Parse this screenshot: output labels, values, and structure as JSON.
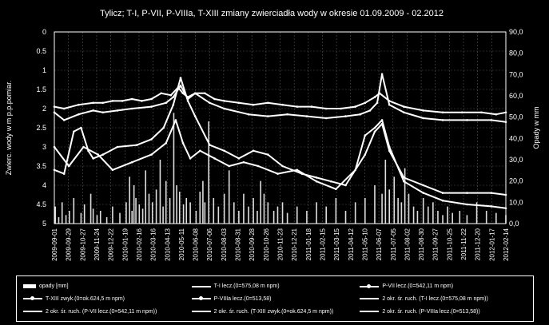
{
  "chart_data": {
    "type": "line",
    "title": "Tylicz; T-I, P-VII, P-VIIIa, T-XIII zmiany zwierciadła wody w okresie 01.09.2009 - 02.2012",
    "ylabel_left": "Zwierc. wody w m p.p.pomiar.",
    "ylabel_right": "Opady w mm",
    "y_left_lim": [
      0,
      5
    ],
    "y_left_ticks": [
      "0",
      "0.5",
      "1",
      "1.5",
      "2",
      "2.5",
      "3",
      "3.5",
      "4",
      "4.5",
      "5"
    ],
    "y_right_lim": [
      0,
      90
    ],
    "y_right_ticks": [
      "0,0",
      "10,0",
      "20,0",
      "30,0",
      "40,0",
      "50,0",
      "60,0",
      "70,0",
      "80,0",
      "90,0"
    ],
    "y_left_inverted": true,
    "x_ticks": [
      "2009-09-01",
      "2009-09-29",
      "2009-10-27",
      "2009-11-24",
      "2009-12-22",
      "2010-01-19",
      "2010-02-16",
      "2010-03-16",
      "2010-04-13",
      "2010-05-11",
      "2010-06-08",
      "2010-07-06",
      "2010-08-03",
      "2010-08-31",
      "2010-09-28",
      "2010-10-26",
      "2010-11-23",
      "2010-12-21",
      "2011-01-18",
      "2011-02-15",
      "2011-03-15",
      "2011-04-12",
      "2011-05-10",
      "2011-06-07",
      "2011-07-05",
      "2011-08-02",
      "2011-08-30",
      "2011-09-27",
      "2011-10-25",
      "2011-11-22",
      "2011-12-20",
      "2012-01-17",
      "2012-02-14"
    ],
    "grid": true,
    "series": [
      {
        "name": "opady [mm]",
        "axis": "right",
        "kind": "bar",
        "x": [
          2,
          9,
          16,
          24,
          31,
          40,
          55,
          62,
          75,
          80,
          88,
          95,
          108,
          120,
          135,
          148,
          155,
          160,
          164,
          168,
          175,
          182,
          188,
          195,
          202,
          210,
          218,
          224,
          230,
          238,
          246,
          252,
          258,
          266,
          272,
          280,
          292,
          300,
          306,
          310,
          318,
          328,
          338,
          350,
          360,
          370,
          380,
          390,
          400,
          410,
          418,
          425,
          432,
          440,
          452,
          460,
          470,
          480,
          500,
          520,
          540,
          560,
          580,
          600,
          620,
          640,
          660,
          675,
          682,
          690,
          700,
          708,
          715,
          722,
          730,
          740,
          748,
          760,
          770,
          780,
          790,
          800,
          810,
          820,
          835,
          850,
          870,
          890,
          910,
          930
        ],
        "values": [
          8,
          3,
          10,
          4,
          6,
          12,
          5,
          9,
          14,
          7,
          4,
          6,
          3,
          8,
          5,
          10,
          22,
          6,
          18,
          12,
          9,
          7,
          25,
          14,
          10,
          16,
          30,
          8,
          20,
          12,
          52,
          18,
          15,
          9,
          12,
          10,
          6,
          15,
          20,
          10,
          48,
          12,
          8,
          14,
          25,
          10,
          6,
          14,
          8,
          12,
          6,
          20,
          14,
          10,
          6,
          8,
          10,
          5,
          8,
          6,
          10,
          8,
          12,
          6,
          10,
          12,
          18,
          14,
          30,
          16,
          22,
          12,
          10,
          26,
          14,
          8,
          6,
          12,
          8,
          10,
          6,
          4,
          8,
          5,
          6,
          4,
          10,
          6,
          5,
          4
        ]
      },
      {
        "name": "T-I lecz.(0=575,08 m npm)",
        "axis": "left",
        "x": [
          0,
          20,
          50,
          80,
          100,
          120,
          140,
          160,
          180,
          200,
          220,
          240,
          255,
          265,
          275,
          290,
          310,
          330,
          350,
          380,
          410,
          440,
          470,
          500,
          530,
          560,
          590,
          620,
          640,
          660,
          670,
          690,
          720,
          760,
          800,
          840,
          880,
          910,
          930
        ],
        "values": [
          1.95,
          2.0,
          1.9,
          1.85,
          1.85,
          1.8,
          1.8,
          1.75,
          1.8,
          1.75,
          1.6,
          1.65,
          1.45,
          1.6,
          1.7,
          1.6,
          1.6,
          1.75,
          1.8,
          1.85,
          1.9,
          1.85,
          1.9,
          1.95,
          1.95,
          2.0,
          2.0,
          1.95,
          1.85,
          1.7,
          1.6,
          1.8,
          1.95,
          2.05,
          2.1,
          2.1,
          2.1,
          2.15,
          2.1
        ]
      },
      {
        "name": "P-VII lecz.(0=542,11 m npm)",
        "axis": "left",
        "x": [
          0,
          20,
          50,
          80,
          100,
          130,
          160,
          200,
          230,
          245,
          260,
          275,
          290,
          320,
          350,
          400,
          440,
          480,
          520,
          560,
          600,
          630,
          650,
          665,
          675,
          690,
          720,
          760,
          800,
          850,
          900,
          930
        ],
        "values": [
          2.1,
          2.3,
          2.15,
          2.05,
          2.1,
          2.05,
          2.0,
          1.95,
          1.85,
          1.7,
          1.4,
          1.75,
          1.6,
          1.85,
          2.0,
          2.15,
          2.2,
          2.15,
          2.2,
          2.25,
          2.2,
          2.15,
          2.05,
          1.85,
          1.1,
          1.9,
          2.1,
          2.25,
          2.3,
          2.3,
          2.3,
          2.35
        ]
      },
      {
        "name": "T-XIII zwyk.(0=ok.624,5 m npm)",
        "axis": "left",
        "x": [
          0,
          20,
          40,
          55,
          70,
          80,
          100,
          130,
          170,
          200,
          225,
          245,
          260,
          275,
          290,
          320,
          350,
          380,
          410,
          440,
          470,
          510,
          540,
          570,
          600,
          640,
          660,
          675,
          690,
          720,
          760,
          800,
          850,
          900,
          930
        ],
        "values": [
          3.6,
          3.7,
          2.6,
          2.5,
          3.1,
          3.3,
          3.2,
          3.0,
          2.95,
          2.8,
          2.5,
          1.9,
          1.2,
          1.8,
          2.2,
          2.95,
          3.1,
          3.3,
          3.1,
          3.2,
          3.5,
          3.7,
          3.8,
          3.9,
          4.0,
          3.2,
          2.6,
          2.4,
          3.1,
          3.8,
          4.0,
          4.2,
          4.2,
          4.2,
          4.25
        ]
      },
      {
        "name": "P-VIIIa lecz.(0=513,58)",
        "axis": "left",
        "x": [
          0,
          30,
          60,
          90,
          120,
          160,
          200,
          230,
          250,
          265,
          280,
          300,
          330,
          360,
          390,
          420,
          460,
          500,
          540,
          580,
          620,
          640,
          660,
          675,
          690,
          720,
          760,
          800,
          850,
          900,
          930
        ],
        "values": [
          3.0,
          3.5,
          3.0,
          3.2,
          3.6,
          3.4,
          3.2,
          2.9,
          2.3,
          2.9,
          3.3,
          3.1,
          3.3,
          3.5,
          3.4,
          3.5,
          3.7,
          3.6,
          3.9,
          4.1,
          3.6,
          2.7,
          2.5,
          2.3,
          3.0,
          3.9,
          4.2,
          4.4,
          4.5,
          4.55,
          4.6
        ]
      }
    ]
  },
  "legend": {
    "items": [
      {
        "label": "opady [mm]",
        "kind": "bar"
      },
      {
        "label": "T-I lecz.(0=575,08 m npm)",
        "kind": "line"
      },
      {
        "label": "P-VII lecz.(0=542,11 m npm)",
        "kind": "line-dot"
      },
      {
        "label": "T-XIII zwyk.(0=ok.624,5 m npm)",
        "kind": "line-dot"
      },
      {
        "label": "P-VIIIa lecz.(0=513,58)",
        "kind": "line-dot"
      },
      {
        "label": "2 okr. śr. ruch. (T-I lecz.(0=575,08 m npm))",
        "kind": "line"
      },
      {
        "label": "2 okr. śr. ruch. (P-VII lecz.(0=542,11 m npm))",
        "kind": "line"
      },
      {
        "label": "2 okr. śr. ruch. (T-XIII zwyk.(0=ok.624,5 m npm))",
        "kind": "line"
      },
      {
        "label": "2 okr. śr. ruch. (P-VIIIa lecz.(0=513,58))",
        "kind": "line"
      }
    ]
  }
}
